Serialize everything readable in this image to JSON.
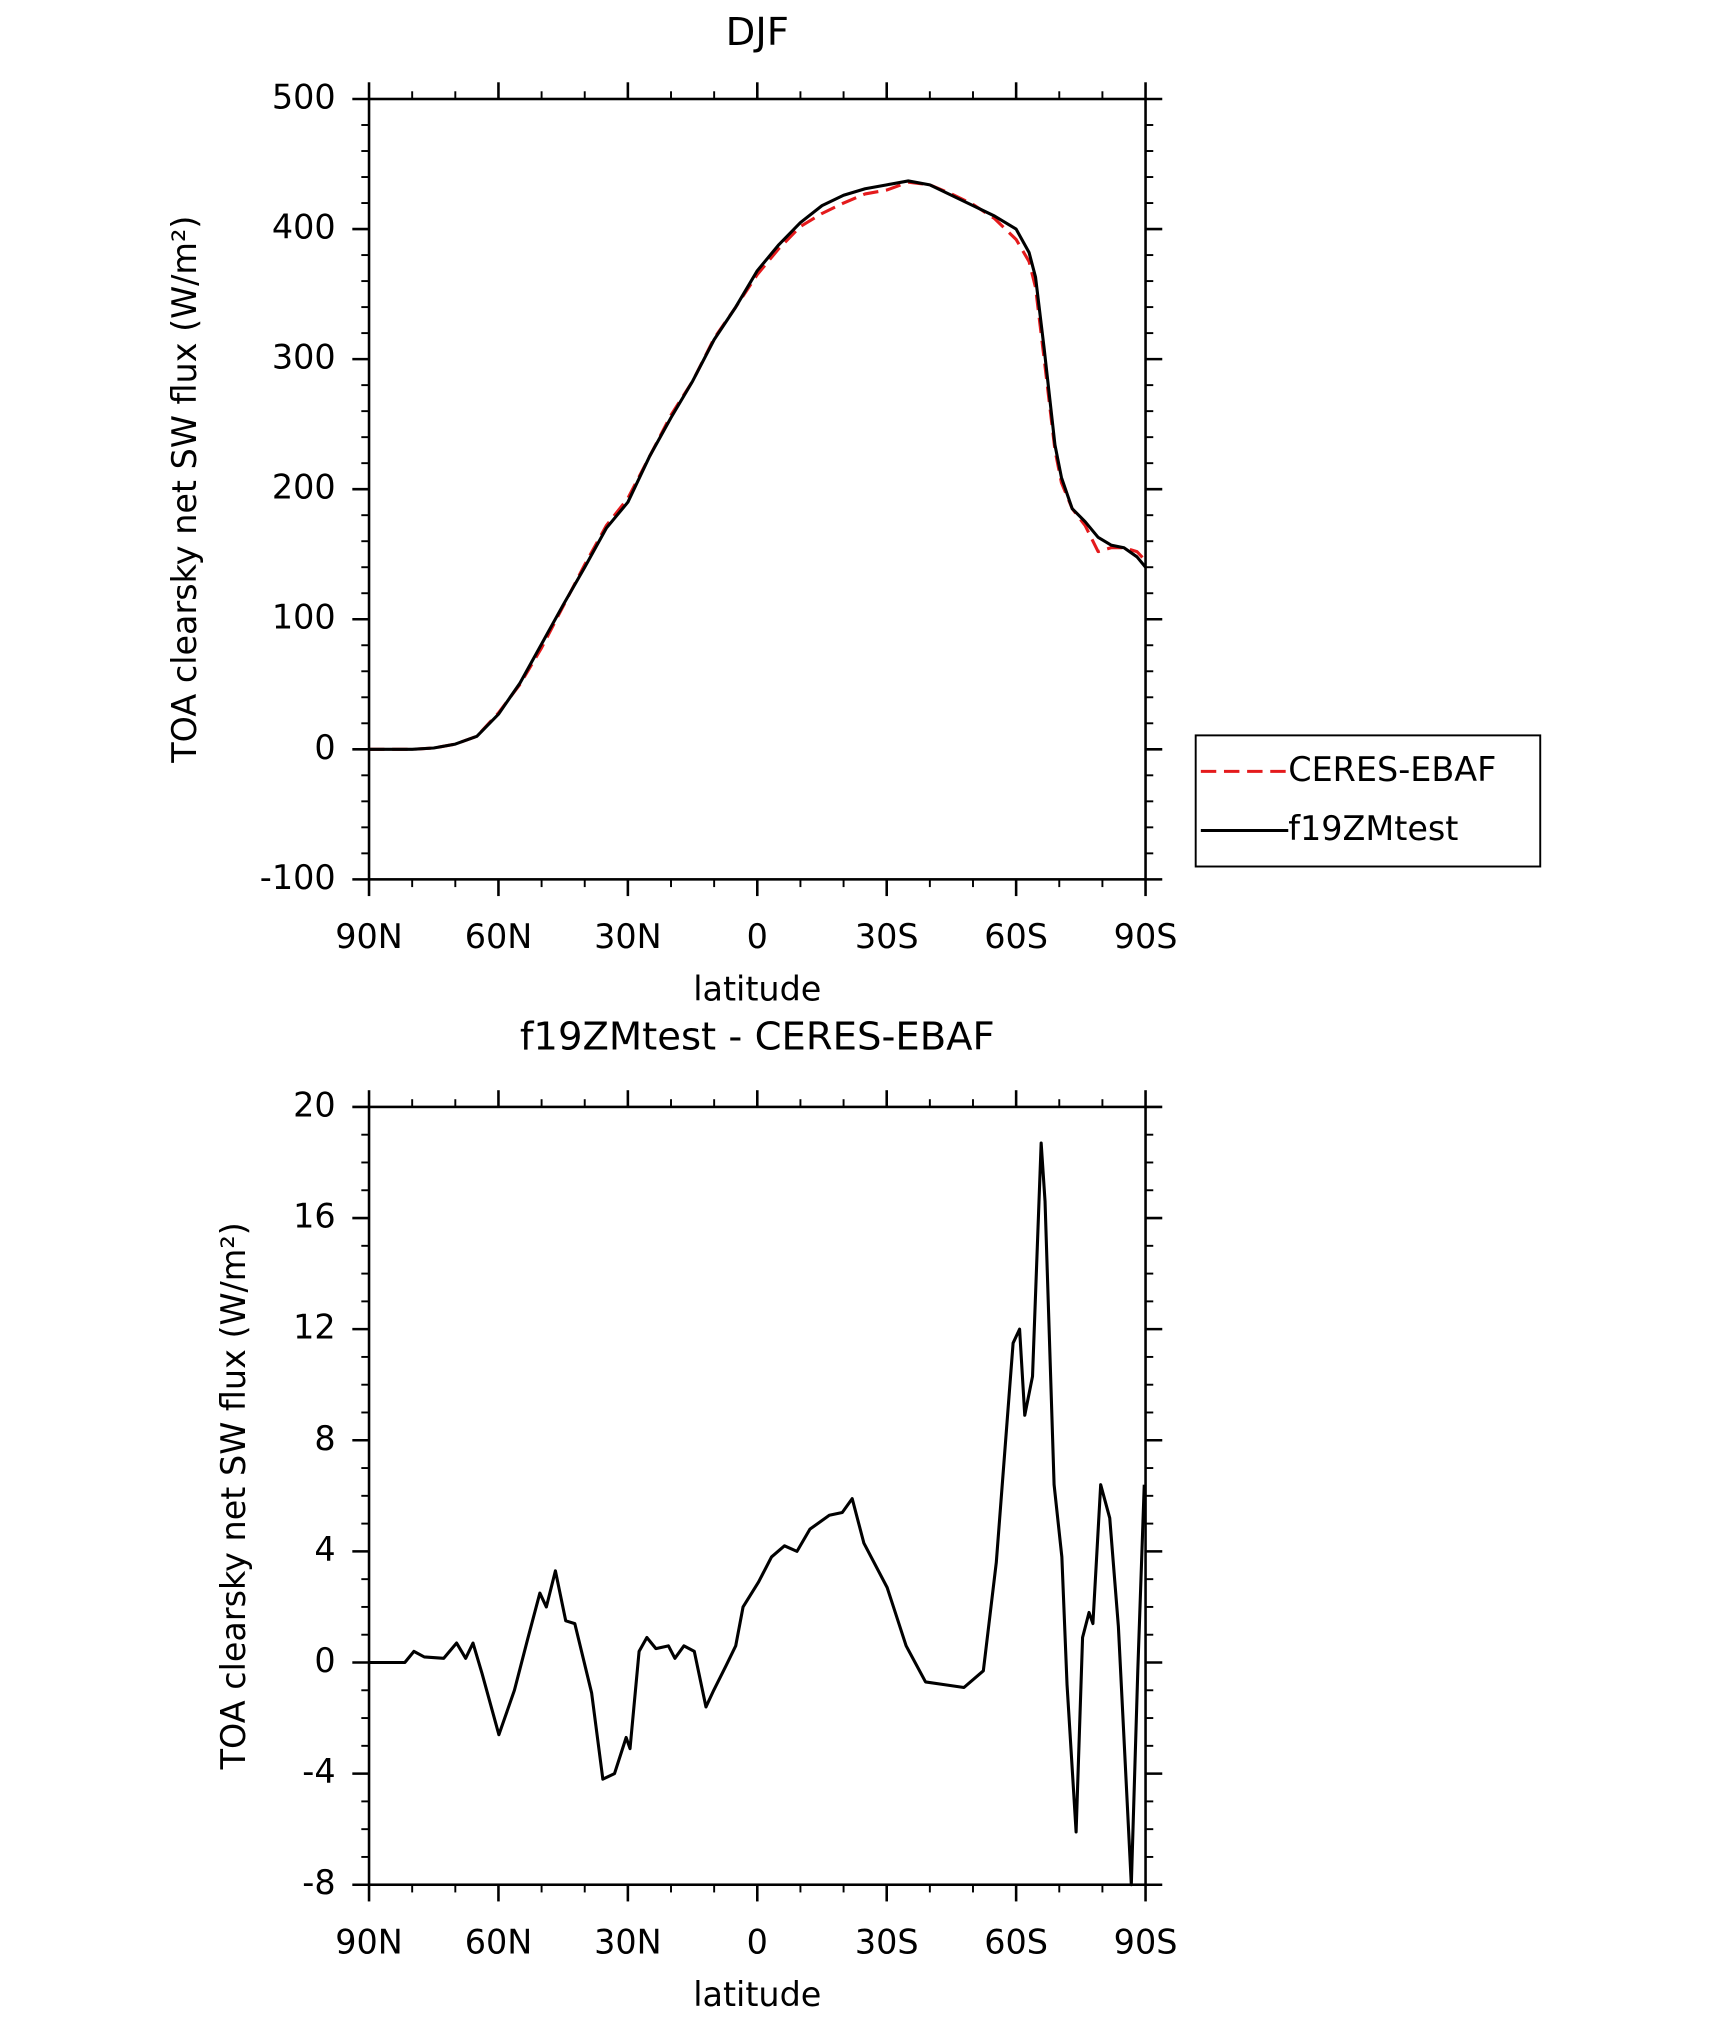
{
  "chart_data": [
    {
      "type": "line",
      "title": "DJF",
      "xlabel": "latitude",
      "ylabel": "TOA clearsky net SW flux (W/m²)",
      "x": [
        90,
        85,
        80,
        75,
        70,
        65,
        60,
        55,
        50,
        45,
        40,
        35,
        30,
        25,
        20,
        15,
        10,
        5,
        0,
        -5,
        -10,
        -15,
        -20,
        -25,
        -30,
        -35,
        -40,
        -45,
        -50,
        -55,
        -60,
        -63,
        -64.5,
        -66.5,
        -69,
        -70.5,
        -73,
        -76,
        -79,
        -82,
        -85,
        -88,
        -90
      ],
      "series": [
        {
          "name": "CERES-EBAF",
          "color": "#e41a1c",
          "dash": true,
          "values": [
            0,
            0,
            0,
            1,
            4,
            10,
            28,
            50,
            78,
            110,
            142,
            172,
            193,
            225,
            257,
            283,
            316,
            340,
            365,
            385,
            402,
            412,
            420,
            427,
            430,
            436,
            434,
            427,
            419,
            408,
            392,
            375,
            355,
            300,
            230,
            205,
            185,
            172,
            152,
            155,
            155,
            152,
            145
          ]
        },
        {
          "name": "f19ZMtest",
          "color": "#000000",
          "dash": false,
          "values": [
            0,
            0,
            0,
            1,
            4,
            10,
            27,
            51,
            81,
            111,
            140,
            170,
            190,
            225,
            255,
            283,
            315,
            340,
            368,
            388,
            405,
            418,
            426,
            431,
            434,
            437,
            434,
            426,
            418,
            410,
            400,
            382,
            363,
            308,
            234,
            209,
            185,
            175,
            163,
            157,
            155,
            148,
            140
          ]
        }
      ],
      "xlim": [
        90,
        -90
      ],
      "xticks": [
        {
          "value": 90,
          "label": "90N"
        },
        {
          "value": 60,
          "label": "60N"
        },
        {
          "value": 30,
          "label": "30N"
        },
        0,
        {
          "value": -30,
          "label": "30S"
        },
        {
          "value": -60,
          "label": "60S"
        },
        {
          "value": -90,
          "label": "90S"
        }
      ],
      "ylim": [
        -100,
        500
      ],
      "yticks": [
        -100,
        0,
        100,
        200,
        300,
        400,
        500
      ],
      "legend": "right"
    },
    {
      "type": "line",
      "title": "f19ZMtest - CERES-EBAF",
      "xlabel": "latitude",
      "ylabel": "TOA clearsky net SW flux (W/m²)",
      "x": [
        90,
        81.7,
        79.6,
        77.2,
        72.7,
        69.7,
        67.6,
        65.9,
        63.8,
        59.9,
        56.3,
        53.3,
        50.4,
        48.9,
        46.8,
        44.4,
        42.3,
        38.4,
        35.8,
        33.1,
        30.4,
        29.5,
        27.4,
        25.6,
        23.5,
        20.6,
        19.1,
        17,
        14.6,
        11.9,
        10.1,
        7.2,
        5,
        3.3,
        -0.3,
        -3.3,
        -6.3,
        -9.2,
        -12.2,
        -16.7,
        -19.7,
        -22,
        -24.7,
        -30.1,
        -34.5,
        -39,
        -43.5,
        -47.9,
        -52.4,
        -55.4,
        -59.3,
        -60.8,
        -62,
        -63.8,
        -65.8,
        -66.7,
        -68.8,
        -70.6,
        -71.8,
        -73.9,
        -75.4,
        -76.9,
        -77.8,
        -79.6,
        -81.7,
        -83.7,
        -86.7,
        -88.2,
        -89.7
      ],
      "series": [
        {
          "name": "f19ZMtest",
          "color": "#000000",
          "dash": false,
          "values": [
            0,
            0,
            0.4,
            0.2,
            0.15,
            0.7,
            0.15,
            0.7,
            -0.4,
            -2.6,
            -1,
            0.8,
            2.5,
            2,
            3.3,
            1.5,
            1.4,
            -1.1,
            -4.2,
            -4,
            -2.7,
            -3.1,
            0.4,
            0.9,
            0.5,
            0.6,
            0.15,
            0.6,
            0.4,
            -1.6,
            -1,
            -0.1,
            0.6,
            2,
            2.9,
            3.8,
            4.2,
            4,
            4.8,
            5.3,
            5.4,
            5.9,
            4.3,
            2.7,
            0.6,
            -0.7,
            -0.8,
            -0.9,
            -0.3,
            3.6,
            11.5,
            12,
            8.9,
            10.3,
            18.7,
            16.6,
            6.4,
            3.8,
            -0.8,
            -6.1,
            0.9,
            1.8,
            1.4,
            6.4,
            5.2,
            1.3,
            -8,
            -0.3,
            6.4
          ]
        }
      ],
      "xlim": [
        90,
        -90
      ],
      "xticks": [
        {
          "value": 90,
          "label": "90N"
        },
        {
          "value": 60,
          "label": "60N"
        },
        {
          "value": 30,
          "label": "30N"
        },
        0,
        {
          "value": -30,
          "label": "30S"
        },
        {
          "value": -60,
          "label": "60S"
        },
        {
          "value": -90,
          "label": "90S"
        }
      ],
      "ylim": [
        -8,
        20
      ],
      "yticks": [
        -8,
        -4,
        0,
        4,
        8,
        12,
        16,
        20
      ]
    }
  ]
}
